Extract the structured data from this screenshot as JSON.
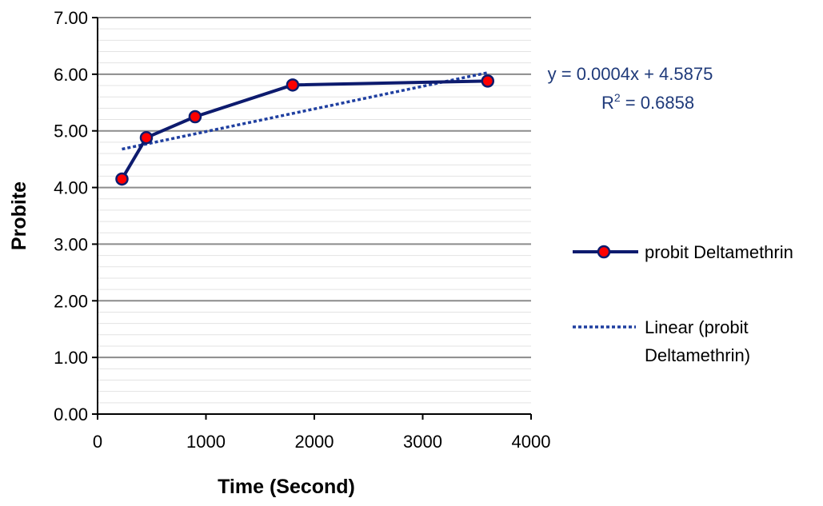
{
  "chart_data": {
    "type": "line",
    "title": "",
    "xlabel": "Time (Second)",
    "ylabel": "Probite",
    "xlim": [
      0,
      4000
    ],
    "ylim": [
      0,
      7
    ],
    "xticks": [
      0,
      1000,
      2000,
      3000,
      4000
    ],
    "xtick_labels": [
      "0",
      "1000",
      "2000",
      "3000",
      "4000"
    ],
    "yticks": [
      0,
      1,
      2,
      3,
      4,
      5,
      6,
      7
    ],
    "ytick_labels": [
      "0.00",
      "1.00",
      "2.00",
      "3.00",
      "4.00",
      "5.00",
      "6.00",
      "7.00"
    ],
    "grid": true,
    "legend_position": "right",
    "series": [
      {
        "name": "probit Deltamethrin",
        "type": "line-markers",
        "color": "#0d1b6e",
        "marker_color": "#ff0000",
        "x": [
          225,
          450,
          900,
          1800,
          3600
        ],
        "y": [
          4.15,
          4.88,
          5.25,
          5.81,
          5.88
        ]
      },
      {
        "name": "Linear (probit Deltamethrin)",
        "type": "trendline",
        "style": "dotted",
        "color": "#1f3fa0",
        "slope": 0.0004,
        "intercept": 4.5875,
        "x_range": [
          225,
          3600
        ]
      }
    ],
    "legend_labels": {
      "series1": "probit Deltamethrin",
      "trend_line1": "Linear (probit",
      "trend_line2": "Deltamethrin)"
    },
    "annotations": {
      "equation": "y = 0.0004x + 4.5875",
      "r2_prefix": "R",
      "r2_sup": "2",
      "r2_value": " = 0.6858"
    }
  }
}
